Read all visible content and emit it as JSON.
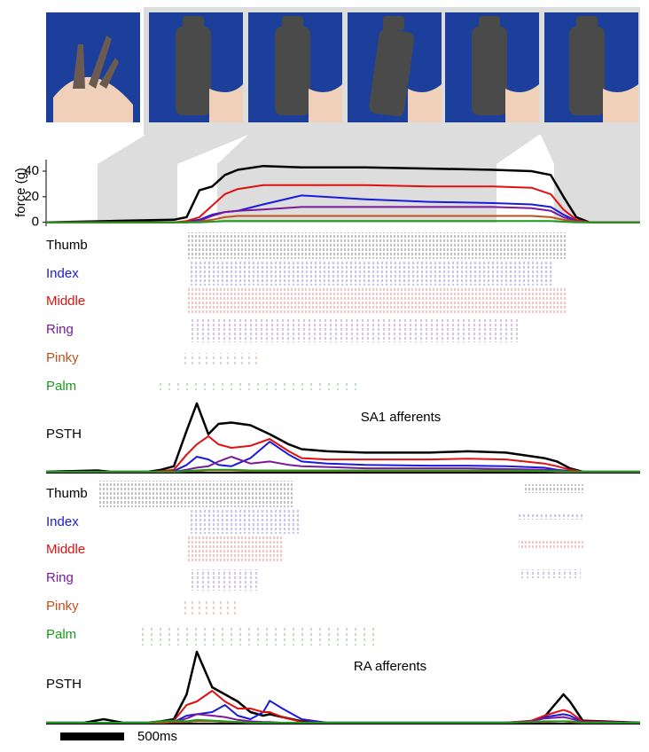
{
  "chart_data": [
    {
      "type": "line",
      "ylabel": "force (g)",
      "ylim": [
        -3,
        49
      ],
      "yticks": [
        0,
        20,
        40
      ],
      "xlim": [
        0,
        4.65
      ],
      "x": [
        0,
        0.5,
        1.0,
        1.1,
        1.2,
        1.3,
        1.4,
        1.5,
        1.7,
        2.0,
        2.5,
        3.0,
        3.5,
        3.8,
        3.95,
        4.05,
        4.15,
        4.25,
        4.65
      ],
      "series": [
        {
          "color": "#000000",
          "values": [
            0,
            1,
            2,
            4,
            25,
            28,
            37,
            41,
            44,
            43,
            43,
            42,
            41,
            40,
            37,
            20,
            4,
            0,
            0
          ]
        },
        {
          "color": "#1a1adb",
          "values": [
            0,
            0,
            0,
            0.5,
            2,
            6,
            8,
            9,
            14,
            21,
            18,
            16,
            15,
            14,
            12,
            6,
            1,
            0,
            0
          ]
        },
        {
          "color": "#e01010",
          "values": [
            0,
            0,
            0,
            1,
            4,
            13,
            22,
            26,
            29,
            29,
            29,
            28,
            28,
            27,
            22,
            10,
            2,
            0,
            0
          ]
        },
        {
          "color": "#7a1a9a",
          "values": [
            0,
            0,
            0,
            0,
            1,
            5,
            8,
            9,
            10,
            12,
            12,
            12,
            12,
            11,
            9,
            4,
            1,
            0,
            0
          ]
        },
        {
          "color": "#c0501a",
          "values": [
            0,
            0,
            0,
            0,
            0.5,
            2,
            4,
            5,
            5,
            5,
            5,
            5,
            5,
            5,
            4,
            2,
            0.5,
            0,
            0
          ]
        },
        {
          "color": "#1a9a1a",
          "values": [
            0,
            0,
            0,
            0,
            0,
            0.5,
            1,
            1,
            1,
            1,
            1,
            1,
            1,
            1,
            1,
            0.5,
            0,
            0,
            0
          ]
        }
      ]
    },
    {
      "type": "line",
      "title": "SA1 afferents",
      "ylabel": "PSTH",
      "ylim": [
        0,
        105
      ],
      "xlim": [
        0,
        4.65
      ],
      "x": [
        0,
        0.4,
        0.5,
        0.8,
        0.9,
        1.0,
        1.1,
        1.18,
        1.27,
        1.35,
        1.45,
        1.6,
        1.75,
        1.9,
        2.0,
        2.2,
        2.5,
        3.0,
        3.3,
        3.6,
        3.9,
        4.0,
        4.1,
        4.2,
        4.65
      ],
      "series": [
        {
          "name": "Thumb",
          "color": "#000000",
          "values": [
            0,
            2,
            0,
            0,
            3,
            8,
            60,
            100,
            55,
            70,
            72,
            68,
            55,
            40,
            33,
            30,
            28,
            28,
            30,
            28,
            20,
            15,
            5,
            0,
            0
          ]
        },
        {
          "name": "Index",
          "color": "#1a1adb",
          "values": [
            0,
            0,
            0,
            0,
            0,
            1,
            10,
            22,
            18,
            10,
            8,
            20,
            44,
            25,
            15,
            12,
            10,
            9,
            9,
            8,
            6,
            3,
            1,
            0,
            0
          ]
        },
        {
          "name": "Middle",
          "color": "#e01010",
          "values": [
            0,
            0,
            0,
            0,
            1,
            3,
            25,
            40,
            52,
            40,
            35,
            38,
            48,
            30,
            20,
            18,
            18,
            18,
            19,
            18,
            12,
            8,
            3,
            0,
            0
          ]
        },
        {
          "name": "Ring",
          "color": "#7a1a9a",
          "values": [
            0,
            0,
            0,
            0,
            0,
            0,
            3,
            6,
            8,
            15,
            22,
            12,
            15,
            10,
            8,
            7,
            5,
            5,
            5,
            4,
            3,
            2,
            0,
            0,
            0
          ]
        },
        {
          "name": "Pinky",
          "color": "#c0501a",
          "values": [
            0,
            0,
            0,
            0,
            0,
            0,
            1,
            1,
            2,
            2,
            2,
            1,
            1,
            1,
            1,
            1,
            1,
            1,
            1,
            1,
            1,
            0,
            0,
            0,
            0
          ]
        },
        {
          "name": "Palm",
          "color": "#1a9a1a",
          "values": [
            0,
            0,
            0,
            0,
            0,
            0,
            1,
            2,
            3,
            3,
            3,
            2,
            2,
            2,
            2,
            2,
            2,
            2,
            2,
            2,
            1,
            1,
            0,
            0,
            0
          ]
        }
      ]
    },
    {
      "type": "line",
      "title": "RA afferents",
      "ylabel": "PSTH",
      "ylim": [
        0,
        105
      ],
      "xlim": [
        0,
        4.65
      ],
      "x": [
        0,
        0.3,
        0.45,
        0.6,
        0.8,
        0.9,
        1.0,
        1.1,
        1.18,
        1.3,
        1.4,
        1.5,
        1.6,
        1.7,
        1.75,
        1.85,
        2.0,
        2.2,
        3.6,
        3.8,
        3.9,
        4.05,
        4.1,
        4.2,
        4.65
      ],
      "series": [
        {
          "name": "Thumb",
          "color": "#000000",
          "values": [
            0,
            0,
            5,
            0,
            0,
            2,
            5,
            40,
            100,
            50,
            40,
            30,
            15,
            10,
            12,
            8,
            2,
            0,
            0,
            2,
            8,
            40,
            30,
            3,
            0
          ]
        },
        {
          "name": "Index",
          "color": "#1a1adb",
          "values": [
            0,
            0,
            0,
            0,
            0,
            0,
            1,
            10,
            12,
            15,
            25,
            10,
            5,
            15,
            31,
            20,
            5,
            0,
            0,
            2,
            8,
            12,
            10,
            1,
            0
          ]
        },
        {
          "name": "Middle",
          "color": "#e01010",
          "values": [
            0,
            0,
            0,
            0,
            0,
            1,
            3,
            25,
            30,
            45,
            30,
            20,
            20,
            15,
            15,
            8,
            1,
            0,
            0,
            3,
            10,
            18,
            15,
            2,
            0
          ]
        },
        {
          "name": "Ring",
          "color": "#7a1a9a",
          "values": [
            0,
            0,
            0,
            0,
            0,
            0,
            1,
            6,
            12,
            10,
            8,
            4,
            2,
            1,
            1,
            0,
            0,
            0,
            0,
            2,
            6,
            8,
            6,
            1,
            0
          ]
        },
        {
          "name": "Pinky",
          "color": "#c0501a",
          "values": [
            0,
            0,
            0,
            0,
            0,
            0,
            1,
            1,
            2,
            2,
            1,
            1,
            0,
            0,
            0,
            0,
            0,
            0,
            0,
            1,
            1,
            2,
            1,
            0,
            0
          ]
        },
        {
          "name": "Palm",
          "color": "#1a9a1a",
          "values": [
            0,
            0,
            0,
            0,
            0,
            2,
            3,
            2,
            4,
            3,
            2,
            1,
            0,
            0,
            0,
            0,
            0,
            0,
            0,
            1,
            2,
            2,
            2,
            0,
            0
          ]
        }
      ]
    }
  ],
  "scale_bar_label": "500ms"
}
